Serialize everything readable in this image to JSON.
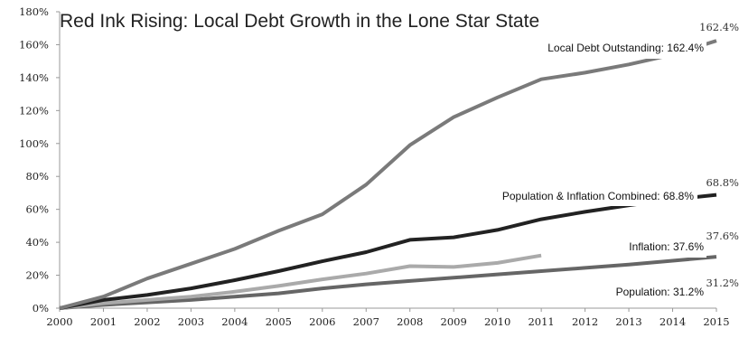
{
  "chart_data": {
    "type": "line",
    "title": "Red Ink Rising: Local Debt Growth in the Lone Star State",
    "x": [
      "2000",
      "2001",
      "2002",
      "2003",
      "2004",
      "2005",
      "2006",
      "2007",
      "2008",
      "2009",
      "2010",
      "2011",
      "2012",
      "2013",
      "2014",
      "2015"
    ],
    "y_tick_labels": [
      "0%",
      "20%",
      "40%",
      "60%",
      "80%",
      "100%",
      "120%",
      "140%",
      "160%",
      "180%"
    ],
    "ylim": [
      0,
      180
    ],
    "grid": false,
    "series": [
      {
        "name": "Local Debt Outstanding",
        "color": "#7a7a7a",
        "values": [
          0,
          7,
          18,
          27,
          36,
          47,
          57,
          75,
          99,
          116,
          128,
          139,
          143,
          148,
          154,
          162.4
        ],
        "callout": "Local Debt Outstanding: 162.4%",
        "end_label": "162.4%"
      },
      {
        "name": "Population & Inflation Combined",
        "color": "#222222",
        "values": [
          0,
          5,
          8,
          12,
          17,
          22.5,
          28.5,
          34,
          41.5,
          43,
          47.5,
          54,
          58.5,
          62.5,
          66,
          68.8
        ],
        "callout": "Population & Inflation Combined: 68.8%",
        "end_label": "68.8%"
      },
      {
        "name": "Inflation",
        "color": "#aaaaaa",
        "values": [
          0,
          3,
          5,
          7,
          10,
          13.5,
          17.5,
          21,
          25.5,
          25,
          27.5,
          32,
          null,
          null,
          null,
          37.6
        ],
        "callout": "Inflation: 37.6%",
        "end_label": "37.6%"
      },
      {
        "name": "Population",
        "color": "#666666",
        "values": [
          0,
          2,
          3.5,
          5,
          7,
          9,
          12,
          14.5,
          16.5,
          18.5,
          20.5,
          22.5,
          24.5,
          26.5,
          28.8,
          31.2
        ],
        "callout": "Population: 31.2%",
        "end_label": "31.2%"
      }
    ]
  }
}
